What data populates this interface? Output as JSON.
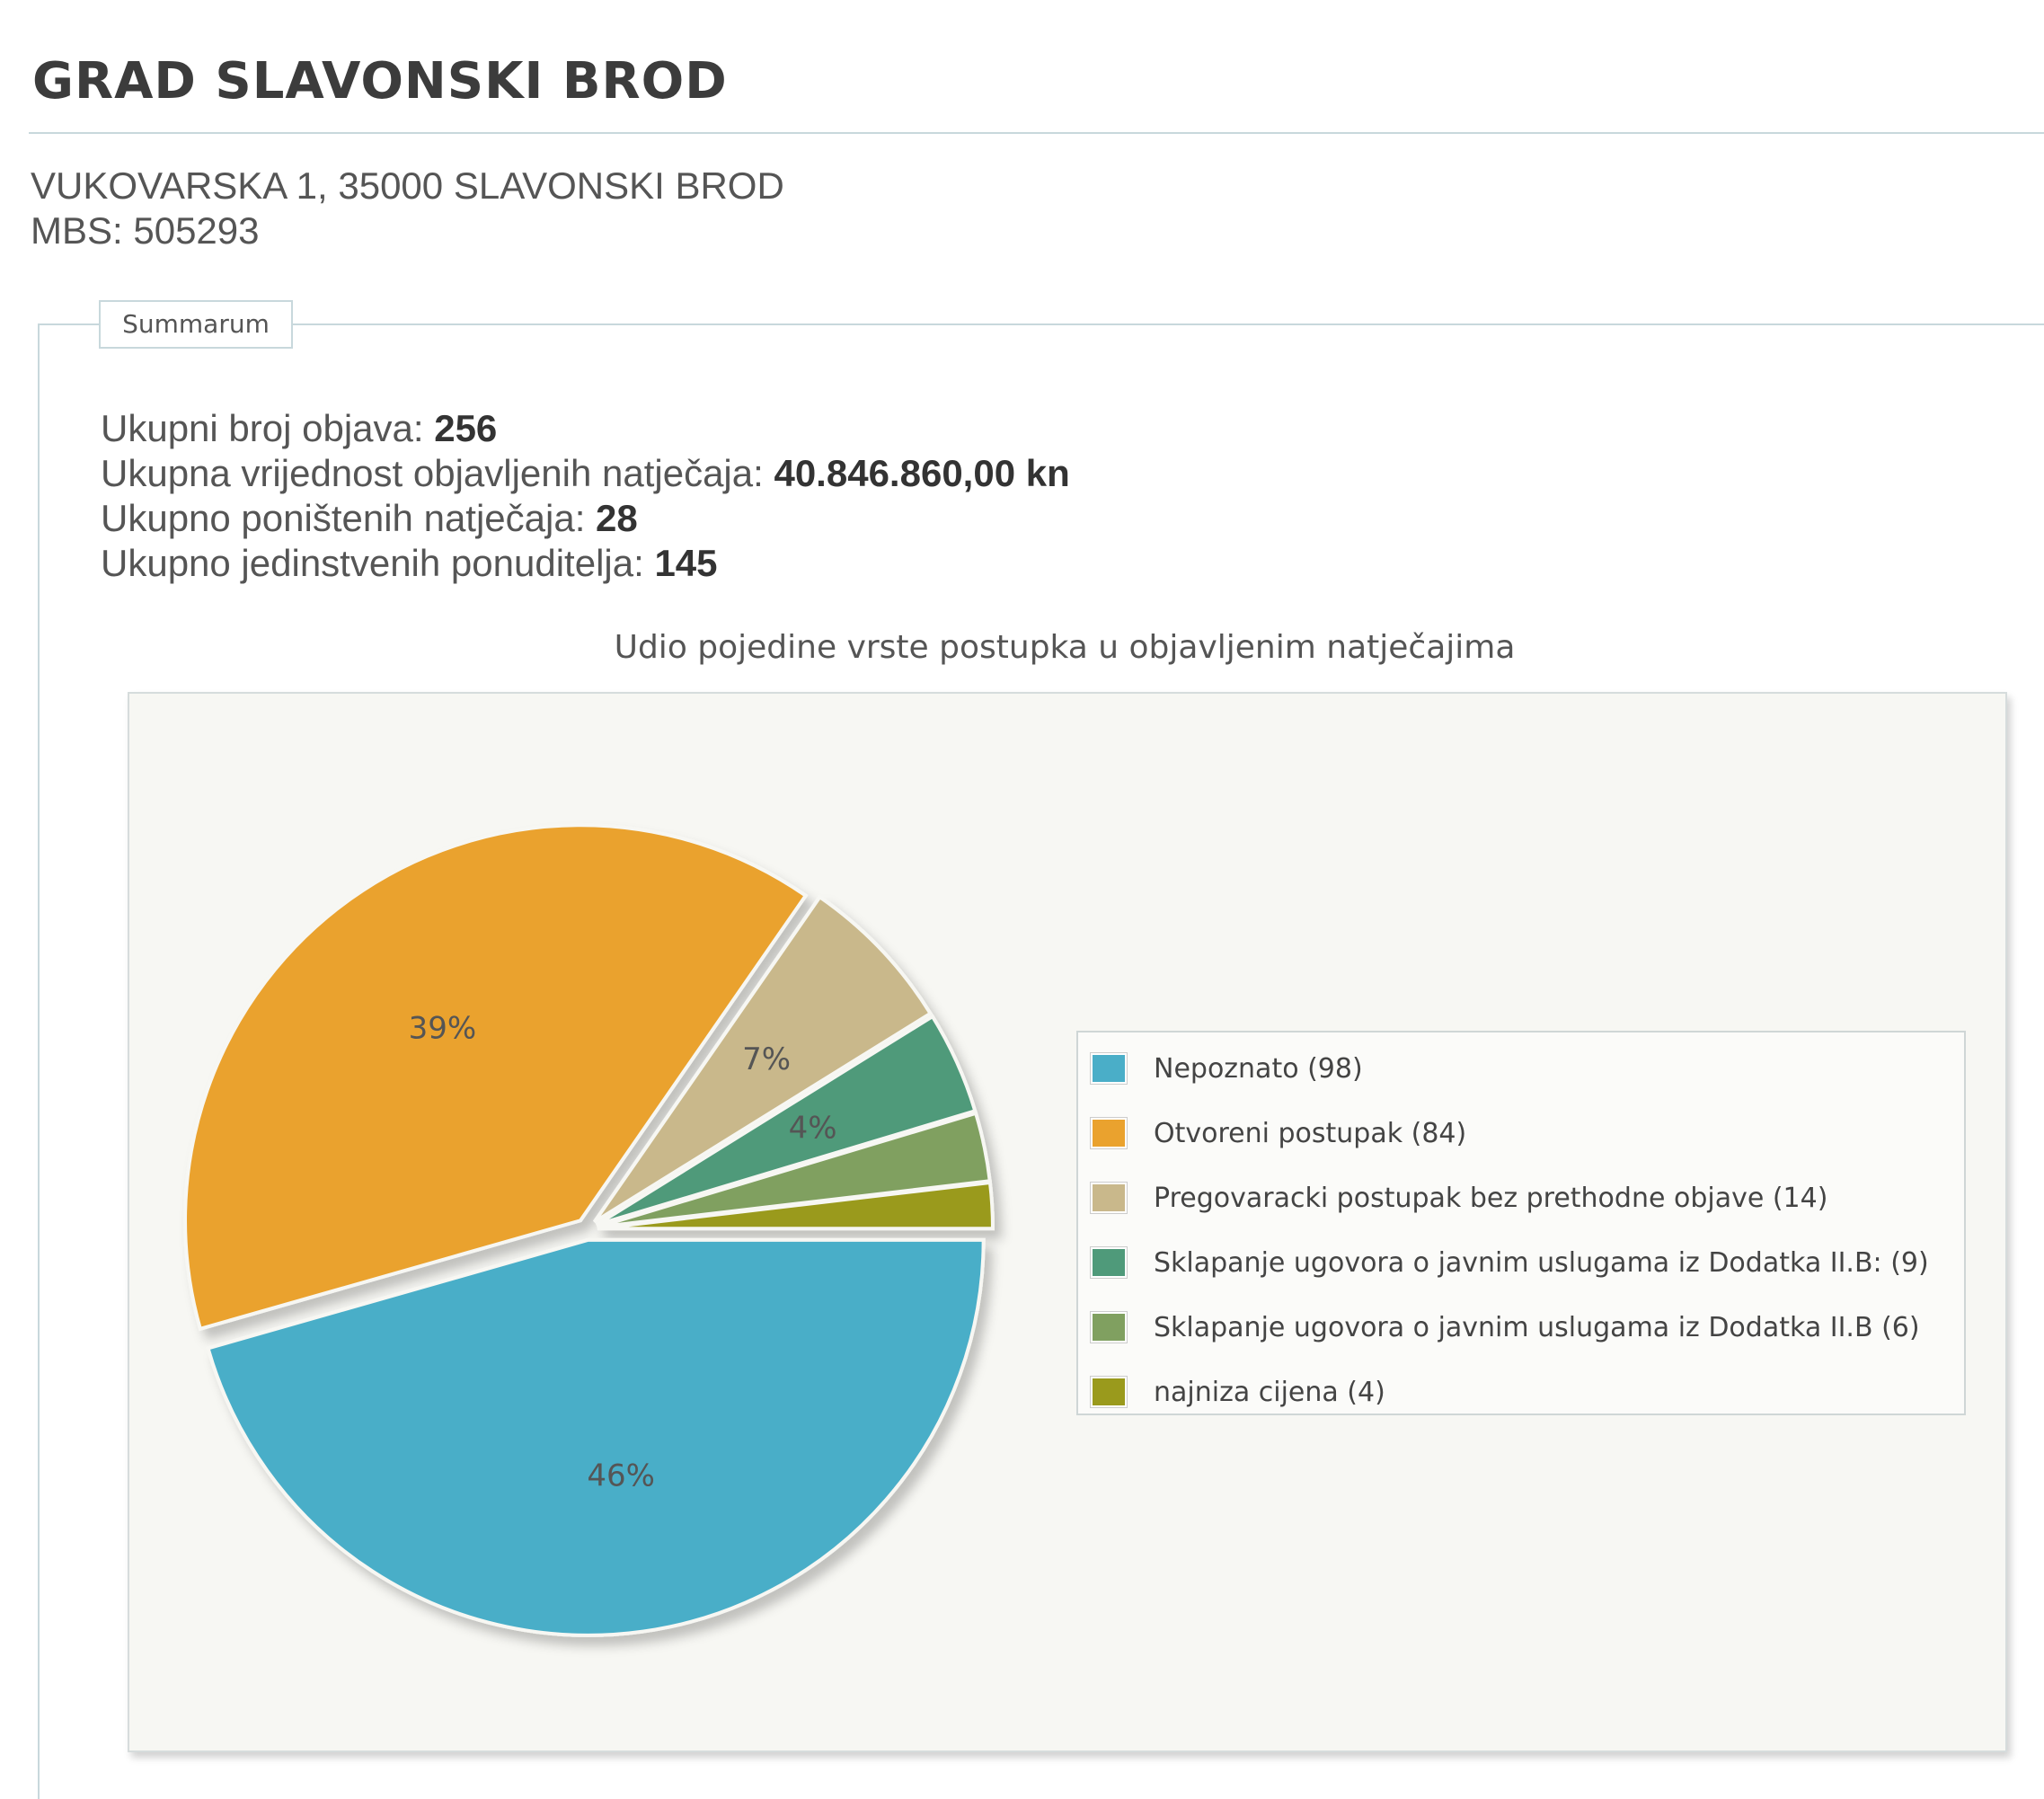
{
  "header": {
    "title": "GRAD SLAVONSKI BROD",
    "address": "VUKOVARSKA 1, 35000 SLAVONSKI BROD",
    "mbs": "MBS: 505293"
  },
  "summary": {
    "legend": "Summarum",
    "rows": [
      {
        "label": "Ukupni broj objava: ",
        "value": "256"
      },
      {
        "label": "Ukupna vrijednost objavljenih natječaja: ",
        "value": "40.846.860,00 kn"
      },
      {
        "label": "Ukupno poništenih natječaja: ",
        "value": "28"
      },
      {
        "label": "Ukupno jedinstvenih ponuditelja: ",
        "value": "145"
      }
    ]
  },
  "chart_data": {
    "type": "pie",
    "title": "Udio pojedine vrste postupka u objavljenim natječajima",
    "legend_position": "right",
    "slices": [
      {
        "legend": "Nepoznato (98)",
        "value": 98,
        "label": "46%",
        "color": "#4aaec8"
      },
      {
        "legend": "Otvoreni postupak (84)",
        "value": 84,
        "label": "39%",
        "color": "#eaa22e"
      },
      {
        "legend": "Pregovaracki postupak bez prethodne objave (14)",
        "value": 14,
        "label": "7%",
        "color": "#c9b88b"
      },
      {
        "legend": "Sklapanje ugovora o javnim uslugama iz Dodatka II.B: (9)",
        "value": 9,
        "label": "4%",
        "color": "#4f9a7a"
      },
      {
        "legend": "Sklapanje ugovora o javnim uslugama iz Dodatka II.B (6)",
        "value": 6,
        "label": "",
        "color": "#80a060"
      },
      {
        "legend": "najniza cijena (4)",
        "value": 4,
        "label": "",
        "color": "#9a9a1c"
      }
    ]
  }
}
